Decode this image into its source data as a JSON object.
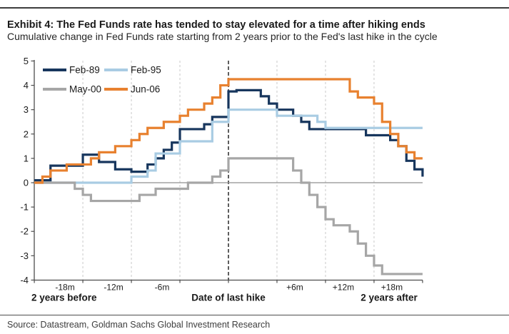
{
  "header": {
    "title": "Exhibit 4: The Fed Funds rate has tended to stay elevated for a time after hiking ends",
    "subtitle": "Cumulative change in Fed Funds rate starting from 2 years prior to the Fed's last hike in the cycle"
  },
  "footer": {
    "source": "Source: Datastream, Goldman Sachs Global Investment Research"
  },
  "colors": {
    "grid_dash": "#c9c9c9",
    "hike_dash": "#1a1a1a",
    "zero_line": "#8f8f8f",
    "axis": "#4d4d4d",
    "text": "#1a1a1a"
  },
  "chart_data": {
    "type": "line",
    "step": true,
    "x_unit": "months relative to the Fed's last hike (month 0 = last hike)",
    "x_start_month": -24,
    "x_end_month": 24,
    "ylim": [
      -4,
      5
    ],
    "y_ticks": [
      5,
      4,
      3,
      2,
      1,
      0,
      -1,
      -2,
      -3,
      -4
    ],
    "x_gridlines_months": [
      -18,
      -12,
      -6,
      6,
      12,
      18
    ],
    "last_hike_month": 0,
    "x_tick_labels": [
      {
        "label": "-18m",
        "month": -18
      },
      {
        "label": "-12m",
        "month": -12
      },
      {
        "label": "-6m",
        "month": -6
      },
      {
        "label": "+6m",
        "month": 6
      },
      {
        "label": "+12m",
        "month": 12
      },
      {
        "label": "+18m",
        "month": 18
      }
    ],
    "x_group_labels": [
      {
        "text": "2 years before",
        "position": "left"
      },
      {
        "text": "Date of last hike",
        "position": "center"
      },
      {
        "text": "2 years after",
        "position": "right"
      }
    ],
    "legend": {
      "position": "top-left",
      "rows": [
        [
          "Feb-89",
          "Feb-95"
        ],
        [
          "May-00",
          "Jun-06"
        ]
      ]
    },
    "series": [
      {
        "name": "Feb-89",
        "color": "#17365d",
        "values": [
          0.1,
          0.1,
          0.7,
          0.7,
          0.7,
          0.7,
          1.15,
          1.15,
          0.85,
          0.85,
          0.55,
          0.55,
          0.45,
          0.45,
          0.75,
          1.0,
          1.35,
          1.65,
          2.2,
          2.2,
          2.2,
          2.4,
          2.7,
          2.7,
          3.75,
          3.8,
          3.8,
          3.8,
          3.55,
          3.25,
          3.0,
          3.0,
          2.75,
          2.5,
          2.2,
          2.2,
          2.2,
          2.2,
          2.2,
          2.2,
          2.2,
          1.95,
          1.95,
          1.95,
          1.75,
          1.5,
          0.9,
          0.55,
          0.25
        ]
      },
      {
        "name": "Feb-95",
        "color": "#a9cce3",
        "values": [
          0,
          0,
          0,
          0,
          0,
          0,
          0,
          0,
          0,
          0,
          0,
          0,
          0.25,
          0.25,
          0.5,
          1.2,
          1.2,
          1.2,
          1.7,
          1.7,
          1.7,
          1.7,
          2.5,
          2.5,
          3.0,
          3.0,
          3.0,
          3.0,
          3.0,
          3.0,
          2.75,
          2.75,
          2.75,
          2.75,
          2.75,
          2.5,
          2.25,
          2.25,
          2.25,
          2.25,
          2.25,
          2.25,
          2.25,
          2.25,
          2.25,
          2.25,
          2.25,
          2.25,
          2.25
        ]
      },
      {
        "name": "May-00",
        "color": "#a6a6a6",
        "values": [
          0,
          0,
          0,
          0,
          0,
          -0.25,
          -0.5,
          -0.75,
          -0.75,
          -0.75,
          -0.75,
          -0.75,
          -0.75,
          -0.5,
          -0.5,
          -0.25,
          -0.25,
          -0.25,
          -0.25,
          0,
          0,
          0,
          0.25,
          0.5,
          1.0,
          1.0,
          1.0,
          1.0,
          1.0,
          1.0,
          1.0,
          1.0,
          0.5,
          0,
          -0.5,
          -1.0,
          -1.5,
          -1.75,
          -1.75,
          -2.0,
          -2.5,
          -3.0,
          -3.4,
          -3.75,
          -3.75,
          -3.75,
          -3.75,
          -3.75,
          -3.75
        ]
      },
      {
        "name": "Jun-06",
        "color": "#e8812f",
        "values": [
          0,
          0.25,
          0.5,
          0.5,
          0.75,
          0.75,
          0.75,
          1.0,
          1.25,
          1.25,
          1.5,
          1.5,
          1.75,
          2.0,
          2.25,
          2.25,
          2.5,
          2.5,
          2.75,
          3.0,
          3.0,
          3.25,
          3.5,
          4.0,
          4.25,
          4.25,
          4.25,
          4.25,
          4.25,
          4.25,
          4.25,
          4.25,
          4.25,
          4.25,
          4.25,
          4.25,
          4.25,
          4.25,
          4.25,
          3.75,
          3.5,
          3.5,
          3.25,
          2.5,
          2.0,
          1.5,
          1.25,
          1.0,
          1.0
        ]
      }
    ]
  }
}
